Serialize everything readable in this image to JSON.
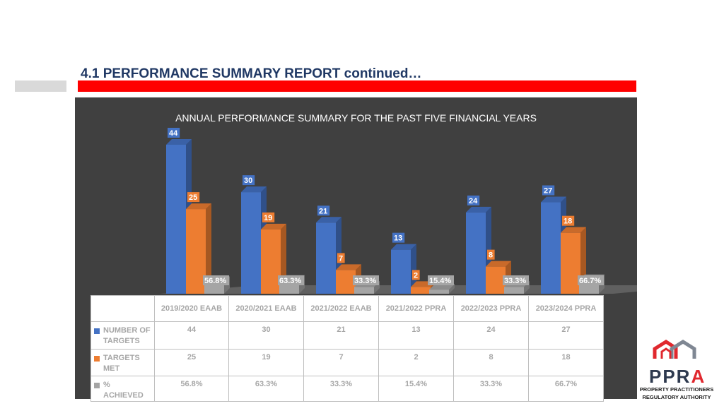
{
  "slide_title": "4.1 PERFORMANCE SUMMARY REPORT continued…",
  "colors": {
    "targets": "#4472c4",
    "met": "#ed7d31",
    "achieved": "#a5a5a5",
    "panel": "#404040",
    "accent_red": "#ff0000"
  },
  "chart_data": {
    "type": "bar",
    "title": "ANNUAL PERFORMANCE SUMMARY FOR THE PAST FIVE FINANCIAL YEARS",
    "categories": [
      "2019/2020 EAAB",
      "2020/2021 EAAB",
      "2021/2022 EAAB",
      "2021/2022 PPRA",
      "2022/2023 PPRA",
      "2023/2024 PPRA"
    ],
    "series": [
      {
        "name": "NUMBER OF TARGETS",
        "values": [
          44,
          30,
          21,
          13,
          24,
          27
        ],
        "labels": [
          "44",
          "30",
          "21",
          "13",
          "24",
          "27"
        ]
      },
      {
        "name": "TARGETS MET",
        "values": [
          25,
          19,
          7,
          2,
          8,
          18
        ],
        "labels": [
          "25",
          "19",
          "7",
          "2",
          "8",
          "18"
        ]
      },
      {
        "name": "% ACHIEVED",
        "values": [
          0.568,
          0.633,
          0.333,
          0.154,
          0.333,
          0.667
        ],
        "labels": [
          "56.8%",
          "63.3%",
          "33.3%",
          "15.4%",
          "33.3%",
          "66.7%"
        ]
      }
    ],
    "ylim": [
      0,
      44
    ],
    "legend": "data table below chart",
    "grid": false
  },
  "logo": {
    "word_p": "PPR",
    "word_a": "A",
    "subtitle_1": "PROPERTY PRACTITIONERS",
    "subtitle_2": "REGULATORY AUTHORITY"
  }
}
